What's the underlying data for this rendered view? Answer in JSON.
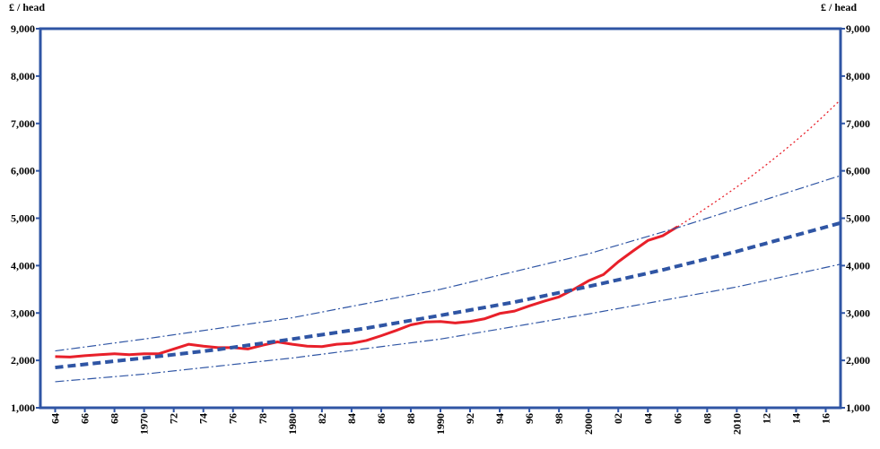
{
  "chart_data": {
    "type": "line",
    "ylabel": "£ / head",
    "xlim": [
      1963,
      2017
    ],
    "ylim": [
      1000,
      9000
    ],
    "axis_color": "#2f55a4",
    "xticks": [
      {
        "value": 1964,
        "label": "64"
      },
      {
        "value": 1966,
        "label": "66"
      },
      {
        "value": 1968,
        "label": "68"
      },
      1970,
      {
        "value": 1972,
        "label": "72"
      },
      {
        "value": 1974,
        "label": "74"
      },
      {
        "value": 1976,
        "label": "76"
      },
      {
        "value": 1978,
        "label": "78"
      },
      1980,
      {
        "value": 1982,
        "label": "82"
      },
      {
        "value": 1984,
        "label": "84"
      },
      {
        "value": 1986,
        "label": "86"
      },
      {
        "value": 1988,
        "label": "88"
      },
      1990,
      {
        "value": 1992,
        "label": "92"
      },
      {
        "value": 1994,
        "label": "94"
      },
      {
        "value": 1996,
        "label": "96"
      },
      {
        "value": 1998,
        "label": "98"
      },
      2000,
      {
        "value": 2002,
        "label": "02"
      },
      {
        "value": 2004,
        "label": "04"
      },
      {
        "value": 2006,
        "label": "06"
      },
      {
        "value": 2008,
        "label": "08"
      },
      2010,
      {
        "value": 2012,
        "label": "12"
      },
      {
        "value": 2014,
        "label": "14"
      },
      {
        "value": 2016,
        "label": "16"
      }
    ],
    "yticks": [
      {
        "value": 1000,
        "label": "1,000"
      },
      {
        "value": 2000,
        "label": "2,000"
      },
      {
        "value": 3000,
        "label": "3,000"
      },
      {
        "value": 4000,
        "label": "4,000"
      },
      {
        "value": 5000,
        "label": "5,000"
      },
      {
        "value": 6000,
        "label": "6,000"
      },
      {
        "value": 7000,
        "label": "7,000"
      },
      {
        "value": 8000,
        "label": "8,000"
      },
      {
        "value": 9000,
        "label": "9,000"
      }
    ],
    "series": [
      {
        "color": "#e8202a",
        "style": "solid",
        "width": 3,
        "x": [
          1964,
          1965,
          1966,
          1967,
          1968,
          1969,
          1970,
          1971,
          1972,
          1973,
          1974,
          1975,
          1976,
          1977,
          1978,
          1979,
          1980,
          1981,
          1982,
          1983,
          1984,
          1985,
          1986,
          1987,
          1988,
          1989,
          1990,
          1991,
          1992,
          1993,
          1994,
          1995,
          1996,
          1997,
          1998,
          1999,
          2000,
          2001,
          2002,
          2003,
          2004,
          2005,
          2006
        ],
        "values": [
          2080,
          2070,
          2100,
          2120,
          2140,
          2120,
          2140,
          2140,
          2240,
          2340,
          2300,
          2270,
          2270,
          2240,
          2320,
          2390,
          2340,
          2300,
          2290,
          2340,
          2360,
          2420,
          2520,
          2630,
          2750,
          2810,
          2820,
          2790,
          2820,
          2880,
          2990,
          3040,
          3150,
          3250,
          3340,
          3500,
          3680,
          3810,
          4080,
          4310,
          4530,
          4630,
          4820
        ]
      },
      {
        "color": "#e8202a",
        "style": "dotted",
        "width": 1.3,
        "x": [
          2006,
          2007,
          2008,
          2009,
          2010,
          2011,
          2012,
          2013,
          2014,
          2015,
          2016,
          2017
        ],
        "values": [
          4820,
          5020,
          5230,
          5440,
          5660,
          5890,
          6130,
          6380,
          6640,
          6910,
          7200,
          7500
        ]
      },
      {
        "color": "#2f55a4",
        "style": "dashed",
        "width": 4,
        "x": [
          1964,
          1970,
          1975,
          1980,
          1985,
          1990,
          1995,
          2000,
          2005,
          2010,
          2017
        ],
        "values": [
          1850,
          2050,
          2230,
          2450,
          2680,
          2950,
          3230,
          3560,
          3910,
          4300,
          4900
        ]
      },
      {
        "color": "#2f55a4",
        "style": "dashdot",
        "width": 1.2,
        "x": [
          1964,
          1970,
          1980,
          1990,
          2000,
          2006,
          2010,
          2017
        ],
        "values": [
          2200,
          2450,
          2900,
          3500,
          4250,
          4800,
          5200,
          5900
        ]
      },
      {
        "color": "#2f55a4",
        "style": "dashdot",
        "width": 1.2,
        "x": [
          1964,
          1970,
          1980,
          1990,
          2000,
          2010,
          2017
        ],
        "values": [
          1550,
          1710,
          2050,
          2450,
          2980,
          3550,
          4030
        ]
      }
    ]
  }
}
